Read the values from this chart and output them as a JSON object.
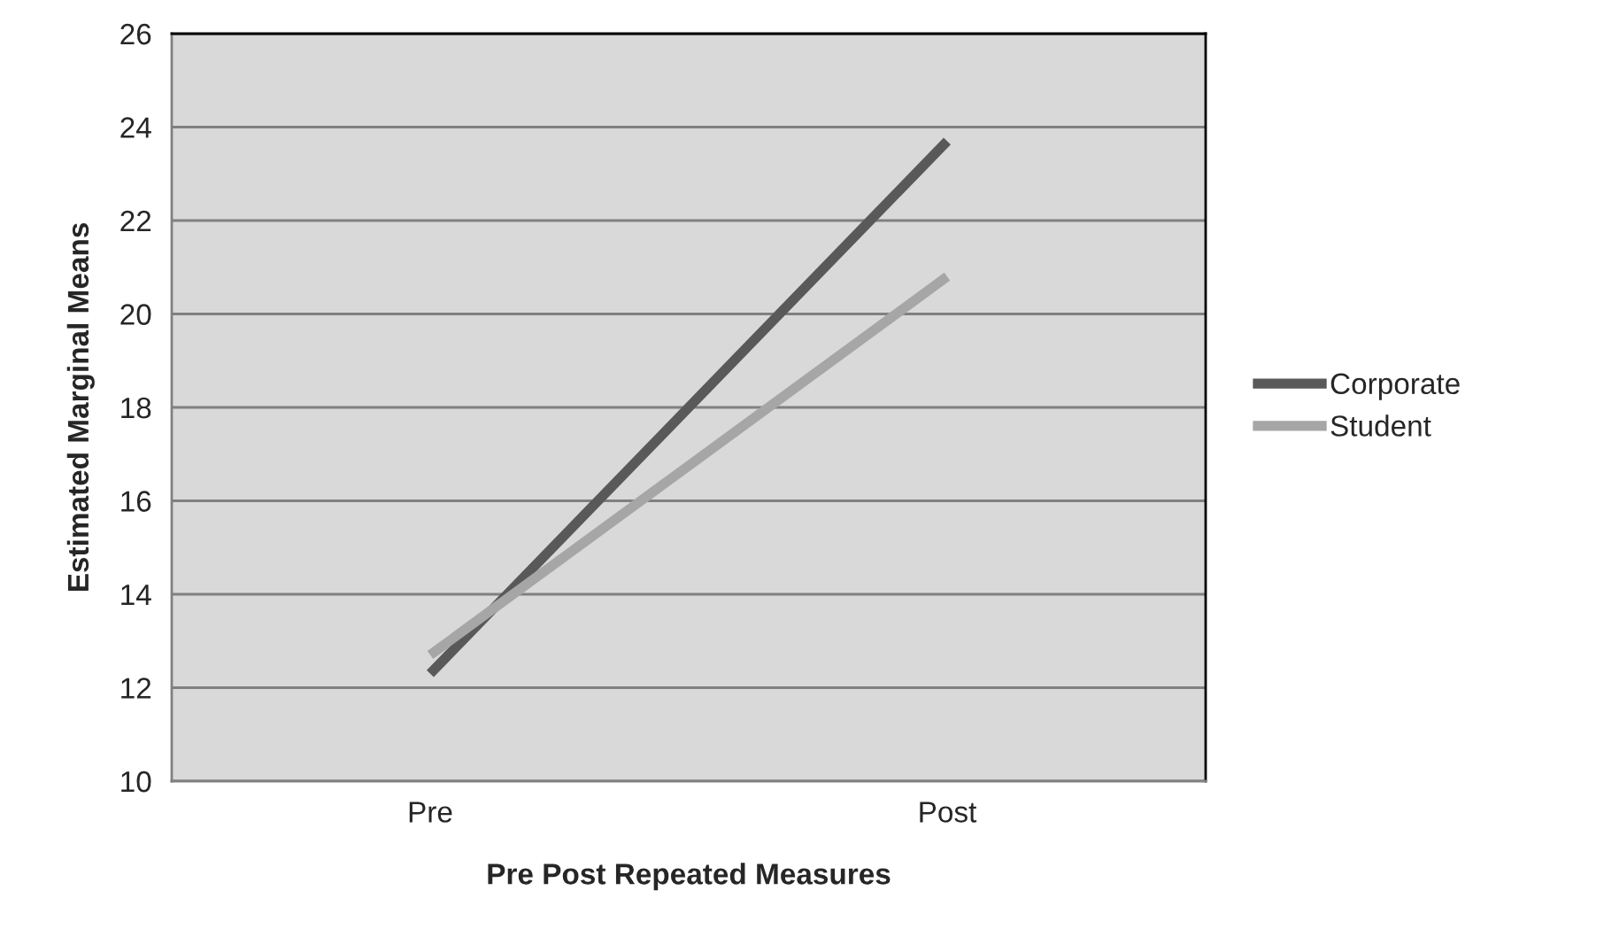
{
  "chart_data": {
    "type": "line",
    "xlabel": "Pre Post Repeated Measures",
    "ylabel": "Estimated Marginal Means",
    "categories": [
      "Pre",
      "Post"
    ],
    "series": [
      {
        "name": "Corporate",
        "color": "#595959",
        "values": [
          12.3,
          23.7
        ]
      },
      {
        "name": "Student",
        "color": "#a6a6a6",
        "values": [
          12.7,
          20.8
        ]
      }
    ],
    "ylim": [
      10,
      26
    ],
    "yticks": [
      10,
      12,
      14,
      16,
      18,
      20,
      22,
      24,
      26
    ],
    "grid": "y",
    "legend": "right",
    "marker": "none",
    "line_style": "solid"
  }
}
